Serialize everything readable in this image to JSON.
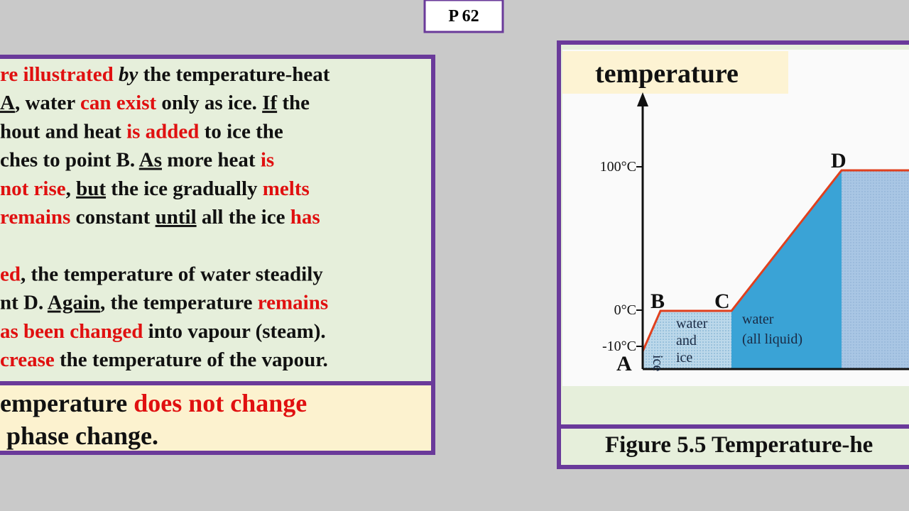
{
  "page_label": "P 62",
  "text_box": {
    "paragraphs": [
      [
        [
          {
            "text": "re illustrated",
            "color": "red"
          },
          {
            "text": " "
          },
          {
            "text": "by",
            "italic": true
          },
          {
            "text": " the temperature-heat"
          }
        ],
        [
          {
            "text": "A",
            "underline": true
          },
          {
            "text": ", water "
          },
          {
            "text": "can exist",
            "color": "red"
          },
          {
            "text": " only as ice. "
          },
          {
            "text": "If",
            "underline": true
          },
          {
            "text": " the"
          }
        ],
        [
          {
            "text": "hout and heat "
          },
          {
            "text": "is added",
            "color": "red"
          },
          {
            "text": " to ice the"
          }
        ],
        [
          {
            "text": "ches to point B. "
          },
          {
            "text": "As",
            "underline": true
          },
          {
            "text": " more heat "
          },
          {
            "text": "is",
            "color": "red"
          }
        ],
        [
          {
            "text": "not rise",
            "color": "red"
          },
          {
            "text": ", "
          },
          {
            "text": "but",
            "underline": true
          },
          {
            "text": " the ice gradually "
          },
          {
            "text": "melts",
            "color": "red"
          }
        ],
        [
          {
            "text": "remains",
            "color": "red"
          },
          {
            "text": " constant "
          },
          {
            "text": "until",
            "underline": true
          },
          {
            "text": " all the ice "
          },
          {
            "text": "has",
            "color": "red"
          }
        ]
      ],
      [
        [
          {
            "text": "ed",
            "color": "red"
          },
          {
            "text": ", the temperature of water steadily"
          }
        ],
        [
          {
            "text": "nt D. "
          },
          {
            "text": "Again",
            "underline": true
          },
          {
            "text": ", the temperature "
          },
          {
            "text": "remains",
            "color": "red"
          }
        ],
        [
          {
            "text": "as been changed",
            "color": "red"
          },
          {
            "text": " into vapour (steam)."
          }
        ],
        [
          {
            "text": "crease",
            "color": "red"
          },
          {
            "text": " the temperature of the vapour."
          }
        ]
      ]
    ]
  },
  "summary_box": {
    "lines": [
      [
        {
          "text": "emperature "
        },
        {
          "text": "does not change",
          "color": "red"
        }
      ],
      [
        {
          "text": " phase change."
        }
      ]
    ]
  },
  "figure": {
    "y_axis_label": "temperature",
    "y_labels": [
      "100°C",
      "0°C",
      "-10°C"
    ],
    "points": [
      "A",
      "B",
      "C",
      "D"
    ],
    "regions": [
      [
        "ice"
      ],
      [
        "water",
        "and",
        "ice"
      ],
      [
        "water",
        "(all liquid)"
      ]
    ],
    "caption": "Figure 5.5 Temperature-he"
  }
}
